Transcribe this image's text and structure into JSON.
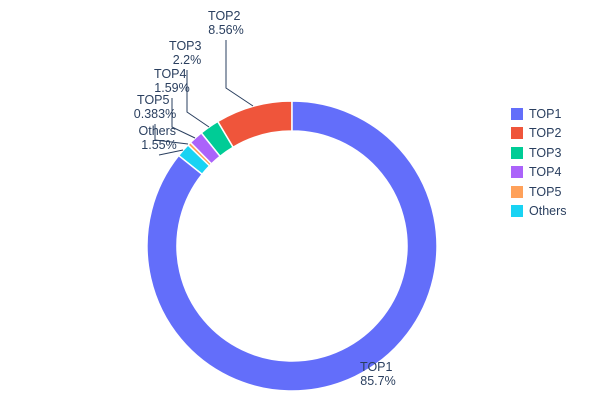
{
  "chart_data": {
    "type": "pie",
    "subtype": "donut",
    "hole": 0.79,
    "labels": [
      "TOP1",
      "TOP2",
      "TOP3",
      "TOP4",
      "TOP5",
      "Others"
    ],
    "values": [
      85.7,
      8.56,
      2.2,
      1.59,
      0.383,
      1.55
    ],
    "percent_labels": [
      "85.7%",
      "8.56%",
      "2.2%",
      "1.59%",
      "0.383%",
      "1.55%"
    ],
    "colors": [
      "#636EFA",
      "#EF553B",
      "#00CC96",
      "#AB63FA",
      "#FFA15A",
      "#19D3F3"
    ],
    "direction": "counterclockwise",
    "rotation_deg": 0,
    "legend_position": "right",
    "background": "#ffffff",
    "text_color": "#2a3f5f"
  }
}
